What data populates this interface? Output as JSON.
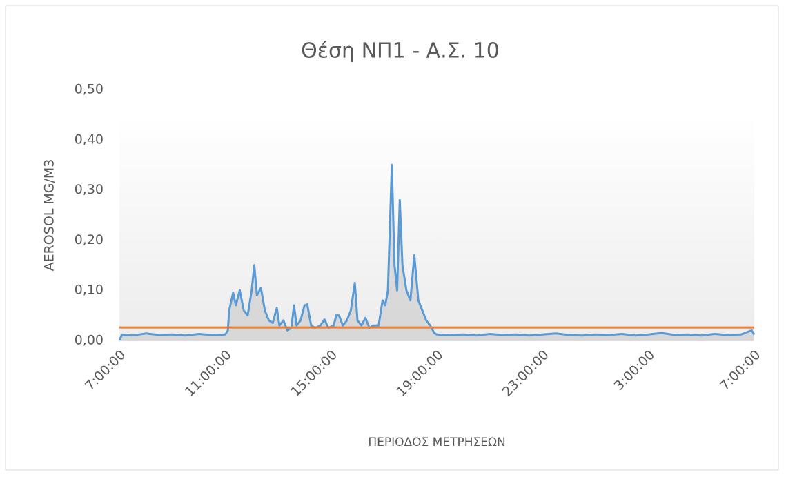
{
  "chart_data": {
    "type": "line",
    "title": "Θέση ΝΠ1 - Α.Σ. 10",
    "y_label": "AEROSOL MG/M3",
    "x_label": "ΠΕΡΙΟΔΟΣ ΜΕΤΡΗΣΕΩΝ",
    "x": [
      7.0,
      7.1,
      7.5,
      8.0,
      8.5,
      9.0,
      9.5,
      10.0,
      10.5,
      11.0,
      11.1,
      11.15,
      11.3,
      11.4,
      11.55,
      11.7,
      11.85,
      12.0,
      12.1,
      12.2,
      12.35,
      12.5,
      12.65,
      12.8,
      12.95,
      13.05,
      13.2,
      13.35,
      13.5,
      13.6,
      13.7,
      13.85,
      14.0,
      14.1,
      14.25,
      14.4,
      14.6,
      14.75,
      14.9,
      15.1,
      15.2,
      15.3,
      15.45,
      15.6,
      15.75,
      15.9,
      16.0,
      16.15,
      16.3,
      16.45,
      16.6,
      16.8,
      16.95,
      17.05,
      17.15,
      17.3,
      17.4,
      17.5,
      17.6,
      17.7,
      17.85,
      18.0,
      18.15,
      18.3,
      18.45,
      18.6,
      18.75,
      18.9,
      19.0,
      19.5,
      20.0,
      20.5,
      21.0,
      21.5,
      22.0,
      22.5,
      23.0,
      23.5,
      24.0,
      24.5,
      25.0,
      25.5,
      26.0,
      26.5,
      27.0,
      27.5,
      28.0,
      28.5,
      29.0,
      29.5,
      30.0,
      30.5,
      30.9,
      31.0
    ],
    "series": [
      {
        "color": "#5b9bd5",
        "area_color": "#c9c9c9",
        "values": [
          0.0,
          0.012,
          0.01,
          0.014,
          0.011,
          0.012,
          0.01,
          0.013,
          0.011,
          0.012,
          0.02,
          0.06,
          0.095,
          0.07,
          0.1,
          0.06,
          0.05,
          0.1,
          0.15,
          0.09,
          0.105,
          0.06,
          0.04,
          0.035,
          0.065,
          0.03,
          0.04,
          0.02,
          0.025,
          0.07,
          0.03,
          0.04,
          0.07,
          0.072,
          0.03,
          0.025,
          0.03,
          0.042,
          0.025,
          0.03,
          0.05,
          0.05,
          0.03,
          0.04,
          0.06,
          0.115,
          0.04,
          0.03,
          0.045,
          0.025,
          0.03,
          0.03,
          0.08,
          0.07,
          0.1,
          0.35,
          0.15,
          0.1,
          0.28,
          0.15,
          0.1,
          0.08,
          0.17,
          0.08,
          0.06,
          0.04,
          0.03,
          0.015,
          0.012,
          0.011,
          0.012,
          0.01,
          0.013,
          0.011,
          0.012,
          0.01,
          0.012,
          0.014,
          0.011,
          0.01,
          0.012,
          0.011,
          0.013,
          0.01,
          0.012,
          0.015,
          0.011,
          0.012,
          0.01,
          0.013,
          0.011,
          0.012,
          0.02,
          0.012
        ]
      }
    ],
    "hlines": [
      {
        "value": 0.026,
        "color": "#ed7d31"
      }
    ],
    "xlim": [
      7,
      31
    ],
    "xticks": [
      {
        "value": 7,
        "label": "7:00:00"
      },
      {
        "value": 11,
        "label": "11:00:00"
      },
      {
        "value": 15,
        "label": "15:00:00"
      },
      {
        "value": 19,
        "label": "19:00:00"
      },
      {
        "value": 23,
        "label": "23:00:00"
      },
      {
        "value": 27,
        "label": "3:00:00"
      },
      {
        "value": 31,
        "label": "7:00:00"
      }
    ],
    "ylim": [
      0,
      0.5
    ],
    "yticks": [
      {
        "value": 0,
        "label": "0,00"
      },
      {
        "value": 0.1,
        "label": "0,10"
      },
      {
        "value": 0.2,
        "label": "0,20"
      },
      {
        "value": 0.3,
        "label": "0,30"
      },
      {
        "value": 0.4,
        "label": "0,40"
      },
      {
        "value": 0.5,
        "label": "0,50"
      }
    ]
  }
}
